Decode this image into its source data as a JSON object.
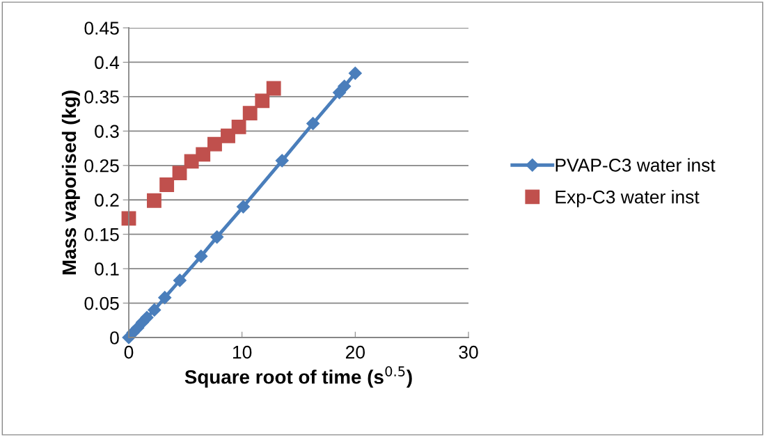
{
  "chart_data": {
    "type": "line",
    "xlabel": "Square root of time (s$^{0.5}$)",
    "ylabel": "Mass vaporised (kg)",
    "xlim": [
      0,
      30
    ],
    "xticks": [
      0,
      10,
      20,
      30
    ],
    "ylim": [
      0,
      0.45
    ],
    "yticks": [
      0,
      0.05,
      0.1,
      0.15,
      0.2,
      0.25,
      0.3,
      0.35,
      0.4,
      0.45
    ],
    "grid": "y",
    "legend": "right",
    "series": [
      {
        "name": "PVAP-C3 water inst",
        "color": "#4a7ebb",
        "marker": "diamond",
        "x": [
          0,
          0.37,
          0.78,
          1.2,
          1.6,
          2.26,
          3.18,
          4.51,
          6.38,
          7.79,
          10.11,
          13.54,
          16.27,
          18.6,
          19.04,
          20.0
        ],
        "values": [
          0,
          0.007,
          0.014,
          0.022,
          0.029,
          0.04,
          0.058,
          0.083,
          0.118,
          0.146,
          0.19,
          0.257,
          0.311,
          0.356,
          0.365,
          0.384
        ]
      },
      {
        "name": "Exp-C3 water inst",
        "type": "scatter",
        "color": "#c0504d",
        "marker": "square",
        "x": [
          0,
          2.24,
          3.36,
          4.49,
          5.54,
          6.56,
          7.59,
          8.76,
          9.72,
          10.71,
          11.79,
          12.8
        ],
        "values": [
          0.173,
          0.199,
          0.222,
          0.239,
          0.256,
          0.266,
          0.281,
          0.293,
          0.306,
          0.326,
          0.344,
          0.362
        ]
      }
    ]
  }
}
